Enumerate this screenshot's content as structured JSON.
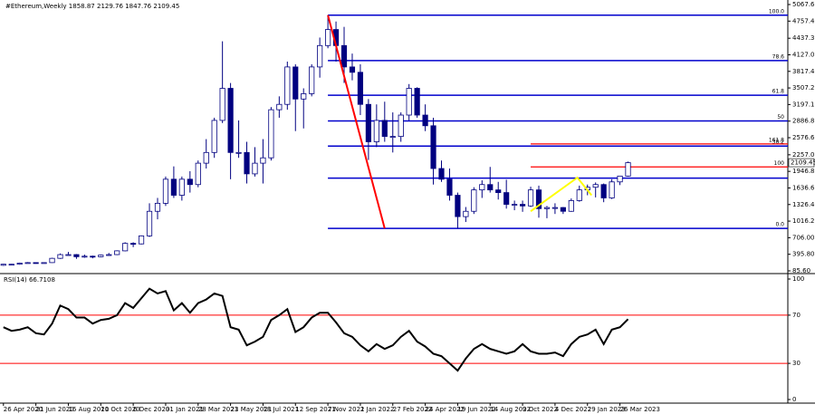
{
  "chart_data": {
    "type": "candlestick",
    "title": "#Ethereum,Weekly",
    "bull_color": "#ffffff",
    "bear_color": "#000080",
    "outline_color": "#000080",
    "xlim": [
      -0.4,
      193.4
    ],
    "ylim": [
      85.6,
      5067.6
    ],
    "x": [
      0,
      2,
      4,
      6,
      8,
      10,
      12,
      14,
      16,
      18,
      20,
      22,
      24,
      26,
      28,
      30,
      32,
      34,
      36,
      38,
      40,
      42,
      44,
      46,
      48,
      50,
      52,
      54,
      56,
      58,
      60,
      62,
      64,
      66,
      68,
      70,
      72,
      74,
      76,
      78,
      80,
      82,
      84,
      86,
      88,
      90,
      92,
      94,
      96,
      98,
      100,
      102,
      104,
      106,
      108,
      110,
      112,
      114,
      116,
      118,
      120,
      122,
      124,
      126,
      128,
      130,
      132,
      134,
      136,
      138,
      140,
      142,
      144,
      146,
      148,
      150,
      152,
      154
    ],
    "ohlc": [
      [
        190,
        215,
        180,
        210
      ],
      [
        210,
        215,
        195,
        210
      ],
      [
        210,
        240,
        200,
        230
      ],
      [
        230,
        250,
        225,
        240
      ],
      [
        240,
        245,
        220,
        230
      ],
      [
        230,
        245,
        225,
        240
      ],
      [
        240,
        330,
        235,
        320
      ],
      [
        320,
        410,
        310,
        390
      ],
      [
        390,
        440,
        375,
        390
      ],
      [
        390,
        400,
        310,
        350
      ],
      [
        350,
        390,
        330,
        360
      ],
      [
        360,
        370,
        320,
        350
      ],
      [
        350,
        390,
        340,
        380
      ],
      [
        380,
        420,
        370,
        390
      ],
      [
        390,
        470,
        380,
        460
      ],
      [
        460,
        620,
        450,
        600
      ],
      [
        600,
        620,
        530,
        590
      ],
      [
        590,
        750,
        580,
        740
      ],
      [
        740,
        1350,
        720,
        1200
      ],
      [
        1200,
        1450,
        1050,
        1350
      ],
      [
        1350,
        1850,
        1300,
        1800
      ],
      [
        1800,
        2040,
        1450,
        1500
      ],
      [
        1500,
        1850,
        1400,
        1800
      ],
      [
        1800,
        1950,
        1550,
        1700
      ],
      [
        1700,
        2150,
        1650,
        2100
      ],
      [
        2100,
        2550,
        2000,
        2300
      ],
      [
        2300,
        2950,
        2200,
        2900
      ],
      [
        2900,
        4380,
        2850,
        3500
      ],
      [
        3500,
        3600,
        1800,
        2300
      ],
      [
        2300,
        2900,
        2200,
        2300
      ],
      [
        2300,
        2500,
        1720,
        1900
      ],
      [
        1900,
        2400,
        1850,
        2100
      ],
      [
        2100,
        2550,
        1720,
        2200
      ],
      [
        2200,
        3150,
        2150,
        3100
      ],
      [
        3100,
        3350,
        2950,
        3200
      ],
      [
        3200,
        4000,
        3100,
        3900
      ],
      [
        3900,
        3950,
        2700,
        3300
      ],
      [
        3300,
        3500,
        2750,
        3400
      ],
      [
        3400,
        3950,
        3350,
        3900
      ],
      [
        3900,
        4450,
        3700,
        4300
      ],
      [
        4300,
        4868,
        4250,
        4600
      ],
      [
        4600,
        4750,
        4000,
        4300
      ],
      [
        4300,
        4650,
        3600,
        3900
      ],
      [
        3900,
        4150,
        3650,
        3800
      ],
      [
        3800,
        3950,
        3000,
        3200
      ],
      [
        3200,
        3300,
        2160,
        2500
      ],
      [
        2500,
        3200,
        2400,
        2900
      ],
      [
        2900,
        3250,
        2500,
        2600
      ],
      [
        2600,
        3050,
        2300,
        2600
      ],
      [
        2600,
        3050,
        2500,
        3000
      ],
      [
        3000,
        3580,
        2900,
        3500
      ],
      [
        3500,
        3520,
        2950,
        3000
      ],
      [
        3000,
        3200,
        2700,
        2800
      ],
      [
        2800,
        2950,
        1700,
        2000
      ],
      [
        2000,
        2150,
        1750,
        1800
      ],
      [
        1800,
        2000,
        1400,
        1500
      ],
      [
        1500,
        1550,
        880,
        1100
      ],
      [
        1100,
        1280,
        1000,
        1200
      ],
      [
        1200,
        1650,
        1150,
        1600
      ],
      [
        1600,
        1780,
        1450,
        1700
      ],
      [
        1700,
        2030,
        1550,
        1600
      ],
      [
        1600,
        1750,
        1420,
        1550
      ],
      [
        1550,
        1790,
        1250,
        1330
      ],
      [
        1330,
        1400,
        1220,
        1330
      ],
      [
        1330,
        1400,
        1190,
        1300
      ],
      [
        1300,
        1660,
        1280,
        1600
      ],
      [
        1600,
        1680,
        1080,
        1250
      ],
      [
        1250,
        1300,
        1070,
        1270
      ],
      [
        1270,
        1350,
        1150,
        1270
      ],
      [
        1270,
        1280,
        1150,
        1200
      ],
      [
        1200,
        1440,
        1190,
        1400
      ],
      [
        1400,
        1680,
        1380,
        1600
      ],
      [
        1600,
        1700,
        1500,
        1650
      ],
      [
        1650,
        1740,
        1460,
        1700
      ],
      [
        1700,
        1720,
        1370,
        1450
      ],
      [
        1450,
        1800,
        1430,
        1750
      ],
      [
        1750,
        1860,
        1690,
        1858.87
      ],
      [
        1858.87,
        2129.76,
        1847.76,
        2109.45
      ]
    ],
    "yticks": [
      {
        "value": 5067.6,
        "label": "5067.60"
      },
      {
        "value": 4757.4,
        "label": "4757.40"
      },
      {
        "value": 4437.3,
        "label": "4437.30"
      },
      {
        "value": 4127,
        "label": "4127.00"
      },
      {
        "value": 3817.4,
        "label": "3817.40"
      },
      {
        "value": 3507.2,
        "label": "3507.20"
      },
      {
        "value": 3197.1,
        "label": "3197.10"
      },
      {
        "value": 2886.8,
        "label": "2886.80"
      },
      {
        "value": 2576.6,
        "label": "2576.60"
      },
      {
        "value": 2257,
        "label": "2257.00"
      },
      {
        "value": 1946.8,
        "label": "1946.80"
      },
      {
        "value": 1636.6,
        "label": "1636.60"
      },
      {
        "value": 1326.4,
        "label": "1326.40"
      },
      {
        "value": 1016.2,
        "label": "1016.20"
      },
      {
        "value": 706,
        "label": "706.00"
      },
      {
        "value": 395.8,
        "label": "395.80"
      },
      {
        "value": 85.6,
        "label": "85.60"
      }
    ],
    "xticks": [
      {
        "value": 0,
        "label": "26 Apr 2020"
      },
      {
        "value": 8,
        "label": "21 Jun 2020"
      },
      {
        "value": 16,
        "label": "16 Aug 2020"
      },
      {
        "value": 24,
        "label": "11 Oct 2020"
      },
      {
        "value": 32,
        "label": "6 Dec 2020"
      },
      {
        "value": 40,
        "label": "31 Jan 2021"
      },
      {
        "value": 48,
        "label": "28 Mar 2021"
      },
      {
        "value": 56,
        "label": "23 May 2021"
      },
      {
        "value": 64,
        "label": "18 Jul 2021"
      },
      {
        "value": 72,
        "label": "12 Sep 2021"
      },
      {
        "value": 80,
        "label": "7 Nov 2021"
      },
      {
        "value": 88,
        "label": "2 Jan 2022"
      },
      {
        "value": 96,
        "label": "27 Feb 2022"
      },
      {
        "value": 104,
        "label": "24 Apr 2022"
      },
      {
        "value": 112,
        "label": "19 Jun 2022"
      },
      {
        "value": 120,
        "label": "14 Aug 2022"
      },
      {
        "value": 128,
        "label": "9 Oct 2022"
      },
      {
        "value": 136,
        "label": "4 Dec 2022"
      },
      {
        "value": 144,
        "label": "29 Jan 2023"
      },
      {
        "value": 152,
        "label": "26 Mar 2023"
      }
    ],
    "fib": {
      "color": "#0000cd",
      "start": 80,
      "levels": [
        {
          "value": 4868,
          "label": "100.0"
        },
        {
          "value": 4020,
          "label": "78.6"
        },
        {
          "value": 3370,
          "label": "61.8"
        },
        {
          "value": 2890,
          "label": "50"
        },
        {
          "value": 2420,
          "label": "38.2"
        },
        {
          "value": 1820
        },
        {
          "value": 880,
          "label": "0.0"
        }
      ]
    },
    "targets": {
      "color": "#ff0000",
      "start": 130,
      "levels": [
        {
          "value": 2460,
          "label": "161.8"
        },
        {
          "value": 2030,
          "label": "100"
        }
      ]
    },
    "trend_lines": [
      {
        "color": "#ff0000",
        "points": [
          [
            80,
            4868
          ],
          [
            94,
            880
          ]
        ]
      },
      {
        "color": "#ffff00",
        "points": [
          [
            130,
            1200
          ],
          [
            141.5,
            1830
          ],
          [
            145,
            1500
          ]
        ]
      }
    ],
    "rsi": {
      "title": "RSI(14) 66.7108",
      "color": "#000000",
      "level_color": "#ff0000",
      "ylim": [
        0,
        100
      ],
      "yticks": [
        100,
        70,
        30,
        0
      ],
      "levels": [
        70,
        30
      ],
      "values": [
        60,
        57,
        58,
        60,
        55,
        54,
        63,
        78,
        75,
        68,
        68,
        63,
        66,
        67,
        70,
        80,
        76,
        84,
        92,
        88,
        90,
        74,
        80,
        72,
        80,
        83,
        88,
        86,
        60,
        58,
        45,
        48,
        52,
        66,
        70,
        75,
        56,
        60,
        68,
        72,
        72,
        64,
        55,
        52,
        45,
        40,
        46,
        42,
        45,
        52,
        57,
        48,
        44,
        38,
        36,
        30,
        24,
        34,
        42,
        46,
        42,
        40,
        38,
        40,
        46,
        40,
        38,
        38,
        39,
        36,
        46,
        52,
        54,
        58,
        46,
        58,
        60,
        66.7108
      ]
    }
  }
}
